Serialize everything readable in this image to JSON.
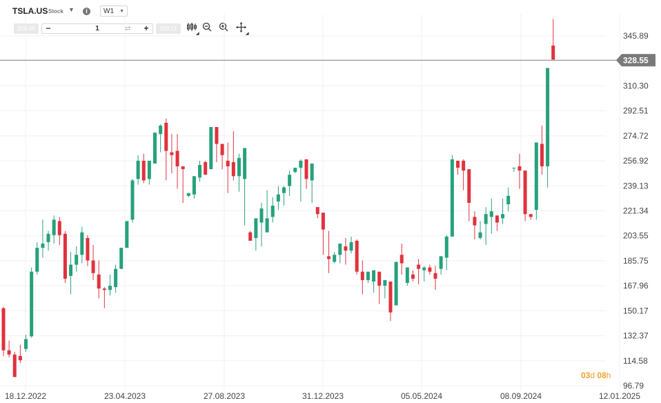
{
  "header": {
    "symbol": "TSLA.US",
    "asset_type": "Stock",
    "timeframe": "W1",
    "sell_price": "328.55",
    "buy_price": "328.21",
    "quantity": "1",
    "minus_label": "−",
    "plus_label": "+",
    "info_label": "i"
  },
  "toolbar": {
    "chart_type_icon": "candlestick-icon",
    "zoom_out_icon": "zoom-out-icon",
    "zoom_in_icon": "zoom-in-icon",
    "crosshair_icon": "crosshair-icon"
  },
  "countdown": {
    "days": "03",
    "days_unit": "d",
    "hours": "08",
    "hours_unit": "h"
  },
  "colors": {
    "up": "#26a17b",
    "down": "#e0323e",
    "price_tag": "#7a7a7a",
    "grid": "#f0f0f0"
  },
  "chart_data": {
    "type": "candlestick",
    "title": "",
    "current_price": 328.55,
    "y_ticks": [
      "345.89",
      "310.30",
      "292.51",
      "274.72",
      "256.92",
      "239.13",
      "221.34",
      "203.55",
      "185.75",
      "167.96",
      "150.17",
      "132.37",
      "114.58",
      "96.79"
    ],
    "ylim": [
      96.79,
      363.68
    ],
    "x_ticks": [
      "18.12.2022",
      "23.04.2023",
      "27.08.2023",
      "31.12.2023",
      "05.05.2024",
      "08.09.2024",
      "12.01.2025"
    ],
    "candles": [
      [
        152,
        153,
        122,
        118
      ],
      [
        122,
        129,
        119,
        117
      ],
      [
        119,
        121,
        103,
        103
      ],
      [
        118,
        126,
        115,
        113
      ],
      [
        123,
        133,
        130,
        121
      ],
      [
        132,
        181,
        178,
        131
      ],
      [
        178,
        199,
        195,
        176
      ],
      [
        195,
        215,
        198,
        188
      ],
      [
        199,
        207,
        205,
        193
      ],
      [
        204,
        218,
        215,
        198
      ],
      [
        214,
        217,
        204,
        197
      ],
      [
        205,
        207,
        173,
        170
      ],
      [
        175,
        192,
        183,
        162
      ],
      [
        183,
        196,
        190,
        178
      ],
      [
        190,
        210,
        206,
        184
      ],
      [
        202,
        204,
        186,
        182
      ],
      [
        186,
        197,
        177,
        172
      ],
      [
        176,
        186,
        166,
        159
      ],
      [
        166,
        167,
        165,
        152
      ],
      [
        165,
        176,
        168,
        161
      ],
      [
        167,
        183,
        180,
        163
      ],
      [
        180,
        191,
        195,
        195
      ],
      [
        195,
        214,
        214,
        206
      ],
      [
        215,
        244,
        243,
        213
      ],
      [
        244,
        261,
        257,
        240
      ],
      [
        257,
        262,
        243,
        241
      ],
      [
        244,
        252,
        257,
        240
      ],
      [
        255,
        275,
        277,
        256
      ],
      [
        276,
        283,
        282,
        263
      ],
      [
        284,
        287,
        264,
        243
      ],
      [
        263,
        276,
        261,
        248
      ],
      [
        264,
        276,
        253,
        237
      ],
      [
        253,
        238,
        251,
        227
      ],
      [
        232,
        228,
        234,
        231
      ],
      [
        233,
        241,
        246,
        230
      ],
      [
        245,
        257,
        254,
        242
      ],
      [
        256,
        257,
        247,
        255
      ],
      [
        251,
        268,
        281,
        253
      ],
      [
        281,
        273,
        269,
        256
      ],
      [
        269,
        251,
        261,
        251
      ],
      [
        257,
        270,
        253,
        234
      ],
      [
        256,
        278,
        246,
        243
      ],
      [
        246,
        262,
        259,
        235
      ],
      [
        244,
        260,
        266,
        211
      ],
      [
        206,
        207,
        200,
        204
      ],
      [
        202,
        213,
        216,
        193
      ],
      [
        213,
        227,
        223,
        196
      ],
      [
        206,
        236,
        216,
        207
      ],
      [
        217,
        231,
        225,
        213
      ],
      [
        228,
        239,
        233,
        222
      ],
      [
        234,
        239,
        238,
        225
      ],
      [
        239,
        250,
        247,
        232
      ],
      [
        249,
        251,
        252,
        248
      ],
      [
        252,
        258,
        257,
        228
      ],
      [
        258,
        254,
        244,
        237
      ],
      [
        243,
        229,
        255,
        227
      ],
      [
        224,
        223,
        219,
        216
      ],
      [
        220,
        208,
        208,
        190
      ],
      [
        189,
        207,
        187,
        177
      ],
      [
        185,
        192,
        190,
        184
      ],
      [
        190,
        198,
        198,
        184
      ],
      [
        196,
        202,
        193,
        183
      ],
      [
        193,
        203,
        199,
        191
      ],
      [
        200,
        201,
        178,
        176
      ],
      [
        178,
        186,
        172,
        162
      ],
      [
        172,
        177,
        178,
        170
      ],
      [
        171,
        173,
        179,
        163
      ],
      [
        178,
        176,
        168,
        155
      ],
      [
        168,
        171,
        172,
        159
      ],
      [
        171,
        168,
        149,
        143
      ],
      [
        154,
        162,
        185,
        167
      ],
      [
        190,
        198,
        184,
        176
      ],
      [
        170,
        175,
        181,
        168
      ],
      [
        176,
        179,
        173,
        171
      ],
      [
        183,
        187,
        180,
        169
      ],
      [
        179,
        182,
        181,
        171
      ],
      [
        181,
        183,
        178,
        176
      ],
      [
        177,
        182,
        173,
        165
      ],
      [
        180,
        181,
        189,
        176
      ],
      [
        188,
        204,
        203,
        179
      ],
      [
        203,
        261,
        258,
        204
      ],
      [
        257,
        254,
        252,
        247
      ],
      [
        257,
        258,
        250,
        236
      ],
      [
        251,
        245,
        227,
        214
      ],
      [
        217,
        221,
        211,
        201
      ],
      [
        202,
        214,
        206,
        201
      ],
      [
        212,
        224,
        219,
        197
      ],
      [
        217,
        230,
        221,
        205
      ],
      [
        218,
        216,
        213,
        207
      ],
      [
        216,
        230,
        219,
        212
      ],
      [
        226,
        238,
        232,
        221
      ],
      [
        252,
        250,
        252,
        249
      ],
      [
        253,
        262,
        250,
        237
      ],
      [
        250,
        248,
        219,
        214
      ],
      [
        219,
        217,
        217,
        215
      ],
      [
        222,
        265,
        270,
        215
      ],
      [
        269,
        282,
        253,
        247
      ],
      [
        253,
        259,
        323,
        238
      ],
      [
        339,
        358,
        329,
        329
      ]
    ]
  }
}
